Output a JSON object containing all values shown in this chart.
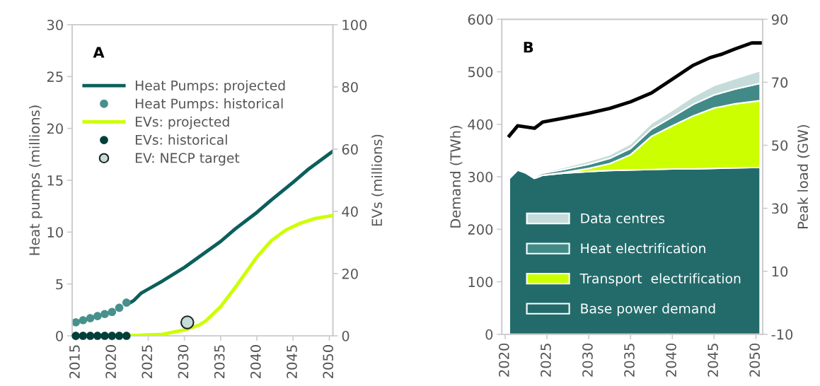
{
  "chart_data": [
    {
      "type": "line",
      "annotations": [
        "A"
      ],
      "xlim": [
        2014.5,
        2050.5
      ],
      "xticks": [
        2015,
        2020,
        2025,
        2030,
        2035,
        2040,
        2045,
        2050
      ],
      "ylabel": "Heat pumps (millions)",
      "ylim": [
        0,
        30
      ],
      "yticks": [
        0,
        5,
        10,
        15,
        20,
        25,
        30
      ],
      "y2label": "EVs (millions)",
      "y2lim": [
        0,
        100
      ],
      "y2ticks": [
        0,
        20,
        40,
        60,
        80,
        100
      ],
      "grid": false,
      "legend": "top left",
      "series": [
        {
          "name": "Heat Pumps: projected",
          "type": "line",
          "color": "#0b5f5c",
          "marker": "none",
          "x": [
            2022.5,
            2023,
            2024,
            2025,
            2027,
            2030,
            2032,
            2035,
            2037,
            2040,
            2042,
            2045,
            2047,
            2050.5
          ],
          "values": [
            3.2,
            3.4,
            4.1,
            4.5,
            5.3,
            6.6,
            7.6,
            9.1,
            10.3,
            11.9,
            13.1,
            14.8,
            16.0,
            17.8
          ]
        },
        {
          "name": "Heat Pumps: historical",
          "type": "scatter",
          "color": "#47908c",
          "marker": "circle",
          "x": [
            2015,
            2016,
            2017,
            2018,
            2019,
            2020,
            2021,
            2022
          ],
          "values": [
            1.3,
            1.5,
            1.7,
            1.9,
            2.1,
            2.3,
            2.7,
            3.2
          ]
        },
        {
          "name": "EVs: projected",
          "type": "line",
          "axis": "y2",
          "color": "#ccff00",
          "marker": "none",
          "x": [
            2022.5,
            2025,
            2027,
            2030,
            2032,
            2033,
            2035,
            2037,
            2040,
            2042,
            2044,
            2046,
            2048,
            2050.5
          ],
          "values": [
            0,
            0.3,
            0.5,
            1.9,
            3.4,
            4.9,
            9.4,
            15.5,
            25.3,
            30.6,
            34,
            36.2,
            37.7,
            38.7
          ]
        },
        {
          "name": "EVs: historical",
          "type": "scatter",
          "axis": "y2",
          "color": "#003f3a",
          "marker": "circle",
          "x": [
            2015,
            2016,
            2017,
            2018,
            2019,
            2020,
            2021,
            2022
          ],
          "values": [
            0,
            0,
            0,
            0,
            0,
            0,
            0,
            0
          ]
        },
        {
          "name": "EV: NECP target",
          "type": "scatter",
          "axis": "y2",
          "color": "#c5dcda",
          "marker": "circle",
          "x": [
            2030.4
          ],
          "values": [
            4.3
          ]
        }
      ]
    },
    {
      "type": "area",
      "stacked": true,
      "annotations": [
        "B"
      ],
      "x": [
        2020.5,
        2021.5,
        2022.5,
        2023.5,
        2024.5,
        2027,
        2030,
        2032.5,
        2035,
        2037.5,
        2040,
        2042.5,
        2045,
        2047.5,
        2050.5
      ],
      "xlim": [
        2019.6,
        2050.8
      ],
      "xticks": [
        2020,
        2025,
        2030,
        2035,
        2040,
        2045,
        2050
      ],
      "ylabel": "Demand (TWh)",
      "ylim": [
        0,
        600
      ],
      "yticks": [
        0,
        100,
        200,
        300,
        400,
        500,
        600
      ],
      "y2label": "Peak load (GW)",
      "y2lim": [
        -10,
        90
      ],
      "y2ticks": [
        -10,
        10,
        30,
        50,
        70,
        90
      ],
      "grid": false,
      "legend": "bottom left",
      "series": [
        {
          "name": "Base power demand",
          "color": "#236b6b",
          "values": [
            297,
            313,
            307,
            297,
            303,
            307,
            310,
            312,
            313,
            314,
            315,
            315,
            316,
            317,
            318
          ]
        },
        {
          "name": "Transport  electrification",
          "color": "#ccff00",
          "values": [
            0,
            0,
            0,
            0,
            0,
            1,
            6,
            13,
            29,
            63,
            82,
            101,
            115,
            122,
            127
          ]
        },
        {
          "name": "Heat electrification",
          "color": "#428a88",
          "values": [
            0,
            2,
            2,
            3,
            4,
            6,
            8,
            10,
            12,
            14,
            17,
            22,
            25,
            28,
            33
          ]
        },
        {
          "name": "Data centres",
          "color": "#c5dcda",
          "values": [
            0,
            1,
            1,
            2,
            3,
            4,
            6,
            7,
            9,
            11,
            13,
            15,
            18,
            20,
            24
          ]
        },
        {
          "type": "line",
          "axis": "y2",
          "color": "#000000",
          "x": [
            2020.5,
            2021.5,
            2023.5,
            2024.5,
            2027,
            2030,
            2032.5,
            2035,
            2037.5,
            2040,
            2042.5,
            2044.5,
            2046,
            2047.5,
            2049.5,
            2050.5
          ],
          "values": [
            53.0,
            56.2,
            55.4,
            57.4,
            58.6,
            60.2,
            61.7,
            63.8,
            66.6,
            71.0,
            75.4,
            77.8,
            79.0,
            80.6,
            82.5,
            82.5
          ]
        }
      ]
    }
  ]
}
